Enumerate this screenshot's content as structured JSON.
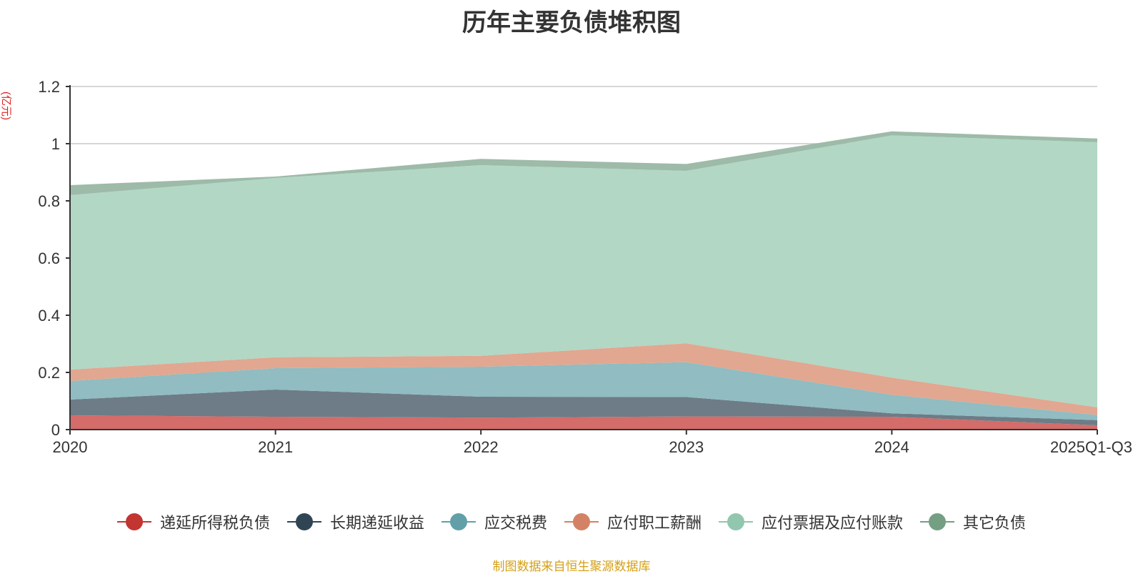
{
  "chart_data": {
    "type": "area",
    "stacked": true,
    "title": "历年主要负债堆积图",
    "unit_label": "(亿元)",
    "categories": [
      "2020",
      "2021",
      "2022",
      "2023",
      "2024",
      "2025Q1-Q3"
    ],
    "ylim": [
      0,
      1.2
    ],
    "yticks": [
      "0",
      "0.2",
      "0.4",
      "0.6",
      "0.8",
      "1",
      "1.2"
    ],
    "grid": true,
    "legend_position": "bottom",
    "series": [
      {
        "name": "递延所得税负债",
        "values": [
          0.05,
          0.045,
          0.042,
          0.046,
          0.045,
          0.015
        ],
        "color": "#c23531",
        "fill": "#d46c6a"
      },
      {
        "name": "长期递延收益",
        "values": [
          0.055,
          0.095,
          0.073,
          0.068,
          0.012,
          0.018
        ],
        "color": "#2f4554",
        "fill": "#6d7c86"
      },
      {
        "name": "应交税费",
        "values": [
          0.065,
          0.075,
          0.105,
          0.122,
          0.065,
          0.018
        ],
        "color": "#61a0a8",
        "fill": "#90bcc2"
      },
      {
        "name": "应付职工薪酬",
        "values": [
          0.04,
          0.038,
          0.038,
          0.066,
          0.06,
          0.027
        ],
        "color": "#d48265",
        "fill": "#e1a790"
      },
      {
        "name": "应付票据及应付账款",
        "values": [
          0.61,
          0.627,
          0.667,
          0.603,
          0.847,
          0.927
        ],
        "color": "#91c7ae",
        "fill": "#b2d7c5"
      },
      {
        "name": "其它负债",
        "values": [
          0.035,
          0.005,
          0.022,
          0.024,
          0.014,
          0.013
        ],
        "color": "#749f83",
        "fill": "#9dbba8"
      }
    ]
  },
  "source_note": "制图数据来自恒生聚源数据库"
}
